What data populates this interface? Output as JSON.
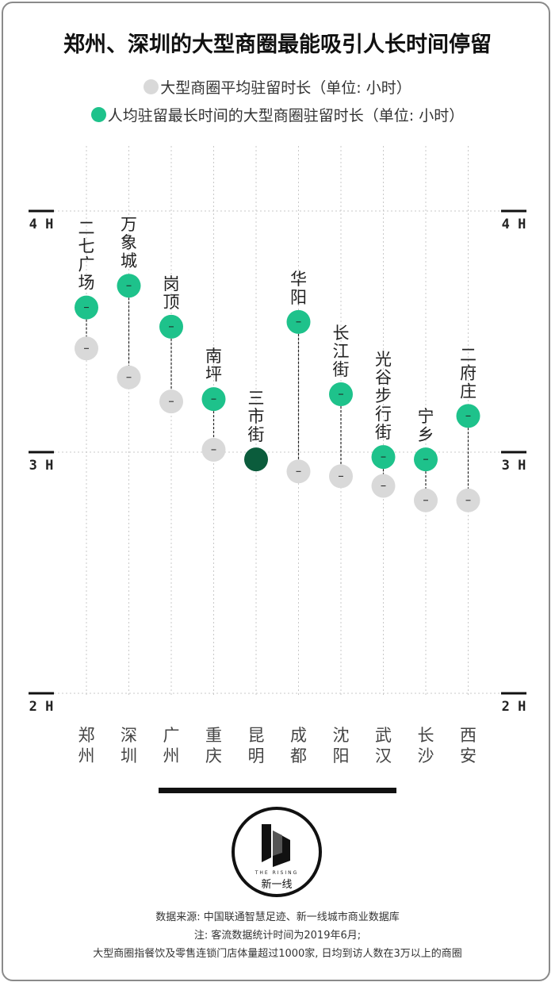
{
  "title": "郑州、深圳的大型商圈最能吸引人长时间停留",
  "legend": {
    "gray_label": "大型商圈平均驻留时长（单位: 小时）",
    "green_label": "人均驻留最长时间的大型商圈驻留时长（单位: 小时）"
  },
  "colors": {
    "gray": "#d9d9d9",
    "green": "#1ec28b",
    "dark_green": "#0b5c3c",
    "axis": "#111111",
    "grid": "#c9c9c9"
  },
  "chart_data": {
    "type": "scatter",
    "y_ticks": [
      "4 H",
      "3 H",
      "2 H"
    ],
    "ylim": [
      2,
      4
    ],
    "categories": [
      "郑州",
      "深圳",
      "广州",
      "重庆",
      "昆明",
      "成都",
      "沈阳",
      "武汉",
      "长沙",
      "西安"
    ],
    "series": [
      {
        "name": "大型商圈平均驻留时长（单位: 小时）",
        "values": [
          3.43,
          3.31,
          3.21,
          3.01,
          2.97,
          2.92,
          2.9,
          2.86,
          2.8,
          2.8
        ]
      },
      {
        "name": "人均驻留最长时间的大型商圈驻留时长（单位: 小时）",
        "values": [
          3.6,
          3.69,
          3.52,
          3.22,
          2.97,
          3.54,
          3.24,
          2.98,
          2.97,
          3.15
        ]
      }
    ],
    "point_labels": [
      "二七广场",
      "万象城",
      "岗顶",
      "南坪",
      "三市街",
      "华阳",
      "长江街",
      "光谷步行街",
      "宁乡",
      "二府庄"
    ],
    "highlight_index": 4
  },
  "logo": {
    "english": "THE RISING",
    "chinese": "新一线"
  },
  "footer": {
    "line1": "数据来源: 中国联通智慧足迹、新一线城市商业数据库",
    "line2": "注: 客流数据统计时间为2019年6月;",
    "line3": "大型商圈指餐饮及零售连锁门店体量超过1000家, 日均到访人数在3万以上的商圈"
  }
}
